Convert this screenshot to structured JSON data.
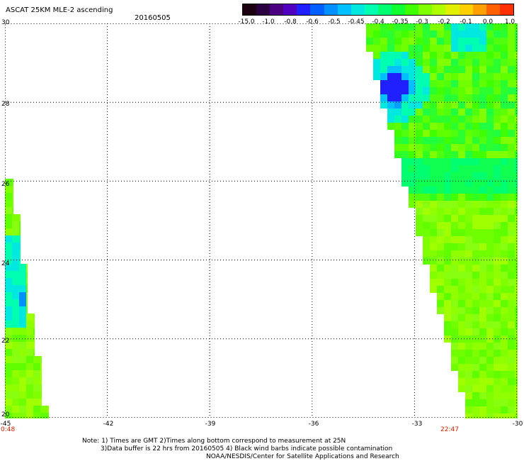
{
  "title": "ASCAT 25KM MLE-2 ascending",
  "date": "20160505",
  "colorbar": {
    "labels": [
      "-15.0",
      "-1.0",
      "-0.8",
      "-0.6",
      "-0.5",
      "-0.45",
      "-0.4",
      "-0.35",
      "-0.3",
      "-0.2",
      "-0.1",
      "0.0",
      "1.0"
    ],
    "colors": [
      "#1a0010",
      "#2a0040",
      "#4a0080",
      "#5000c0",
      "#2020ff",
      "#0060ff",
      "#0090ff",
      "#00c0ff",
      "#00e8e0",
      "#00ffb0",
      "#00ff70",
      "#10ff30",
      "#40ff00",
      "#80ff00",
      "#b0ff00",
      "#e0f000",
      "#ffd000",
      "#ffa000",
      "#ff6000",
      "#ff3000"
    ]
  },
  "y_ticks": [
    "30",
    "28",
    "26",
    "24",
    "22",
    "20"
  ],
  "x_ticks": [
    "-45",
    "-42",
    "-39",
    "-36",
    "-33",
    "-30"
  ],
  "time_left": "0:48",
  "time_right": "22:47",
  "notes": [
    "Note: 1) Times are GMT 2)Times along bottom correspond to measurement at 25N",
    "3)Data buffer is 22 hrs from 20160505 4) Black wind barbs indicate possible contamination",
    "NOAA/NESDIS/Center for Satellite Applications and Research"
  ],
  "map_data": {
    "lon_range": [
      -45,
      -30
    ],
    "lat_range": [
      20,
      30
    ],
    "gridlines": {
      "lons": [
        -42,
        -39,
        -36,
        -33
      ],
      "lats": [
        28,
        26,
        24,
        22
      ]
    },
    "swaths": [
      {
        "name": "right-swath",
        "dominant_value": "-0.3",
        "min_value": "-1.0"
      },
      {
        "name": "left-swath",
        "dominant_value": "-0.2",
        "min_value": "-0.45"
      }
    ]
  }
}
